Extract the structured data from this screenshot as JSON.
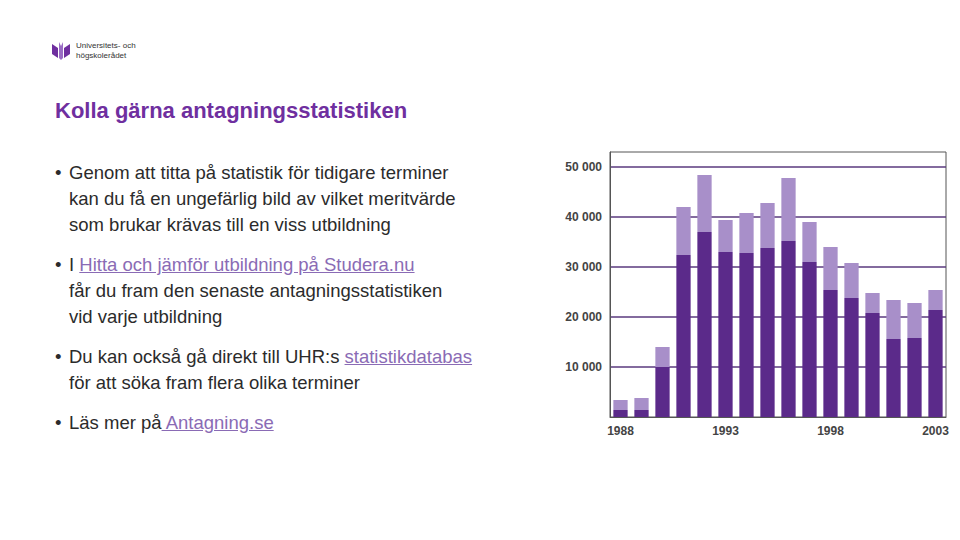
{
  "logo": {
    "lines": [
      "Universitets- och",
      "högskolerådet"
    ]
  },
  "title": "Kolla gärna antagningsstatistiken",
  "bullets": [
    [
      [
        {
          "text": "Genom att titta på statistik för tidigare terminer"
        }
      ],
      [
        {
          "text": "kan du få en ungefärlig bild av vilket meritvärde"
        }
      ],
      [
        {
          "text": "som brukar krävas till en viss utbildning"
        }
      ]
    ],
    [
      [
        {
          "text": "I "
        },
        {
          "text": "Hitta och jämför utbildning på Studera.nu",
          "link": true
        }
      ],
      [
        {
          "text": "får du fram den senaste antagningsstatistiken"
        }
      ],
      [
        {
          "text": "vid varje utbildning"
        }
      ]
    ],
    [
      [
        {
          "text": "Du kan också gå direkt till UHR:s "
        },
        {
          "text": "statistikdatabas",
          "link": true
        }
      ],
      [
        {
          "text": "för att söka fram flera olika terminer"
        }
      ]
    ],
    [
      [
        {
          "text": "Läs mer på"
        },
        {
          "text": " Antagning.se",
          "link": true
        }
      ]
    ]
  ],
  "chart_data": {
    "type": "bar",
    "stacked": true,
    "grid": true,
    "categories": [
      "1988",
      null,
      null,
      null,
      null,
      "1993",
      null,
      null,
      null,
      null,
      "1998",
      null,
      null,
      null,
      null,
      "2003"
    ],
    "series": [
      {
        "color": "#5b2a8a",
        "values": [
          1400,
          1400,
          10000,
          32400,
          37000,
          33000,
          32800,
          33800,
          35200,
          31000,
          25400,
          23800,
          20800,
          15600,
          15800,
          21400
        ]
      },
      {
        "color": "#a88fc9",
        "values": [
          2000,
          2400,
          4000,
          9600,
          11400,
          6400,
          8000,
          9000,
          12600,
          8000,
          8600,
          7000,
          4000,
          7800,
          7000,
          4000
        ]
      }
    ],
    "ylim": [
      0,
      53000
    ],
    "yticks": [
      {
        "value": 10000,
        "label": "10 000"
      },
      {
        "value": 20000,
        "label": "20 000"
      },
      {
        "value": 30000,
        "label": "30 000"
      },
      {
        "value": 40000,
        "label": "40 000"
      },
      {
        "value": 50000,
        "label": "50 000"
      }
    ]
  }
}
